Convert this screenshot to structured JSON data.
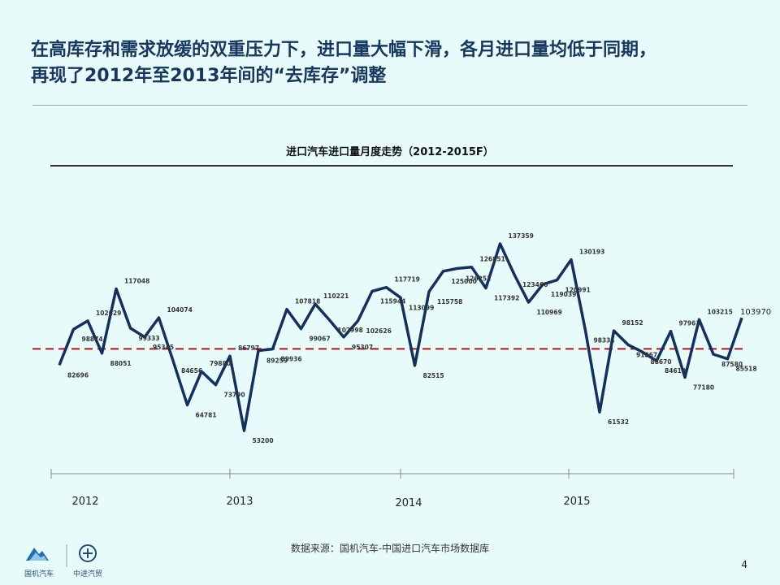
{
  "headline": {
    "line1": "在高库存和需求放缓的双重压力下，进口量大幅下滑，各月进口量均低于同期，",
    "line2": "再现了2012年至2013年间的“去库存”调整"
  },
  "chart_data": {
    "type": "line",
    "title": "进口汽车进口量月度走势（2012-2015F）",
    "year_labels": [
      "2012",
      "2013",
      "2014",
      "2015"
    ],
    "x": [
      1,
      2,
      3,
      4,
      5,
      6,
      7,
      8,
      9,
      10,
      11,
      12,
      13,
      14,
      15,
      16,
      17,
      18,
      19,
      20,
      21,
      22,
      23,
      24,
      25,
      26,
      27,
      28,
      29,
      30,
      31,
      32,
      33,
      34,
      35,
      36,
      37,
      38,
      39,
      40,
      41,
      42,
      43,
      44,
      45,
      46,
      47,
      48
    ],
    "values": [
      82696,
      98874,
      102629,
      88051,
      117048,
      99333,
      95345,
      104074,
      84656,
      64781,
      79880,
      73790,
      86797,
      53200,
      89259,
      89936,
      107818,
      99067,
      110221,
      102998,
      95307,
      102626,
      115944,
      117719,
      113099,
      82515,
      115758,
      125000,
      126251,
      126851,
      117392,
      137359,
      123466,
      110969,
      119039,
      120991,
      130193,
      98334,
      61532,
      98152,
      91867,
      88670,
      84610,
      97961,
      77180,
      103215,
      87580,
      85518
    ],
    "value_labels": [
      "82696",
      "98874",
      "102629",
      "88051",
      "117048",
      "99333",
      "95345",
      "104074",
      "84656",
      "64781",
      "79880",
      "73790",
      "86797",
      "53200",
      "89259",
      "89936",
      "107818",
      "99067",
      "110221",
      "102998",
      "95307",
      "102626",
      "115944",
      "117719",
      "113099",
      "82515",
      "115758",
      "125000",
      "126251",
      "126851",
      "117392",
      "137359",
      "123466",
      "110969",
      "119039",
      "120991",
      "130193",
      "98334",
      "61532",
      "98152",
      "91867",
      "88670",
      "84610",
      "97961",
      "77180",
      "103215",
      "87580",
      "85518"
    ],
    "last_point": {
      "x": 49,
      "value": 103970,
      "label": "103970"
    },
    "reference_line": 90000,
    "ylim": [
      40000,
      150000
    ],
    "line_color": "#14305c",
    "reference_color": "#b5121b",
    "grid": false
  },
  "footer": {
    "source": "数据来源：国机汽车-中国进口汽车市场数据库",
    "page_number": "4",
    "logo1_label": "国机汽车",
    "logo2_label": "中进汽贸"
  }
}
